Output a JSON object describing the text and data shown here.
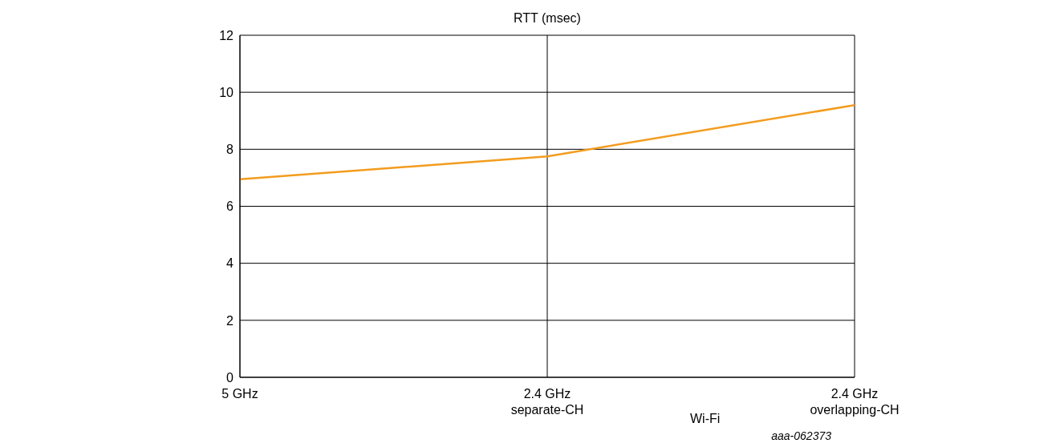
{
  "chart_data": {
    "type": "line",
    "ylabel": "RTT (msec)",
    "xlabel": "Wi-Fi",
    "annotations": [
      "aaa-062373"
    ],
    "categories": [
      "5 GHz",
      "2.4 GHz\nseparate-CH",
      "2.4 GHz\noverlapping-CH"
    ],
    "series": [
      {
        "color": "#f39c1e",
        "values": [
          6.95,
          7.75,
          9.55
        ]
      }
    ],
    "ylim": [
      0,
      12
    ],
    "yticks": [
      0,
      2,
      4,
      6,
      8,
      10,
      12
    ],
    "grid": true,
    "marker": "none",
    "line_style": "solid"
  }
}
